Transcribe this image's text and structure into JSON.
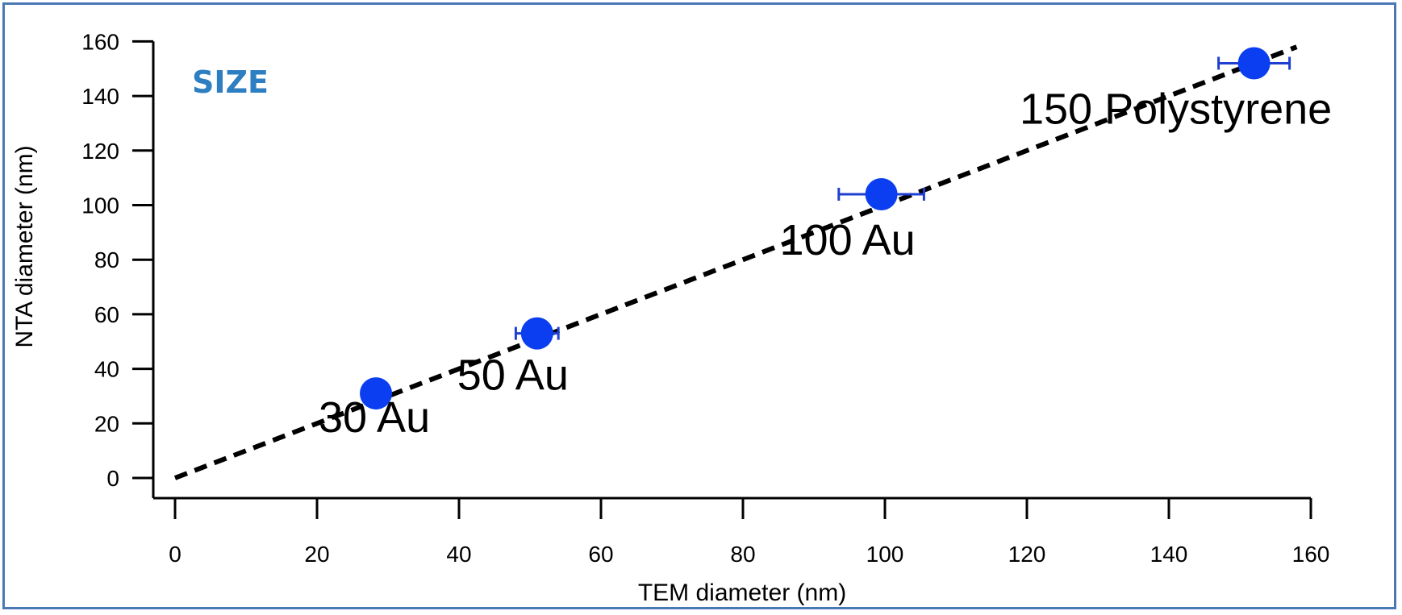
{
  "chart_data": {
    "type": "scatter",
    "panel_label": "SIZE",
    "xlabel": "TEM diameter (nm)",
    "ylabel": "NTA diameter (nm)",
    "xlim": [
      0,
      160
    ],
    "ylim": [
      0,
      160
    ],
    "x_ticks": [
      "0",
      "20",
      "40",
      "60",
      "80",
      "100",
      "120",
      "140",
      "160"
    ],
    "y_ticks": [
      "0",
      "20",
      "40",
      "60",
      "80",
      "100",
      "120",
      "140",
      "160"
    ],
    "grid": false,
    "points": [
      {
        "label": "30 Au",
        "x": 28.3,
        "y": 31,
        "xerr": 0.5
      },
      {
        "label": "50 Au",
        "x": 51,
        "y": 53,
        "xerr": 3
      },
      {
        "label": "100 Au",
        "x": 99.5,
        "y": 104,
        "xerr": 6
      },
      {
        "label": "150 Polystyrene",
        "x": 152,
        "y": 152,
        "xerr": 5
      }
    ],
    "reference_line": {
      "style": "dashed",
      "x": [
        0,
        158
      ],
      "y": [
        0,
        158
      ]
    },
    "colors": {
      "points": "#0a3ef0",
      "error_bars": "#1f3fd0",
      "panel_label": "#2e7fc1",
      "reference_line": "#000000",
      "frame": "#4a78b5"
    }
  }
}
